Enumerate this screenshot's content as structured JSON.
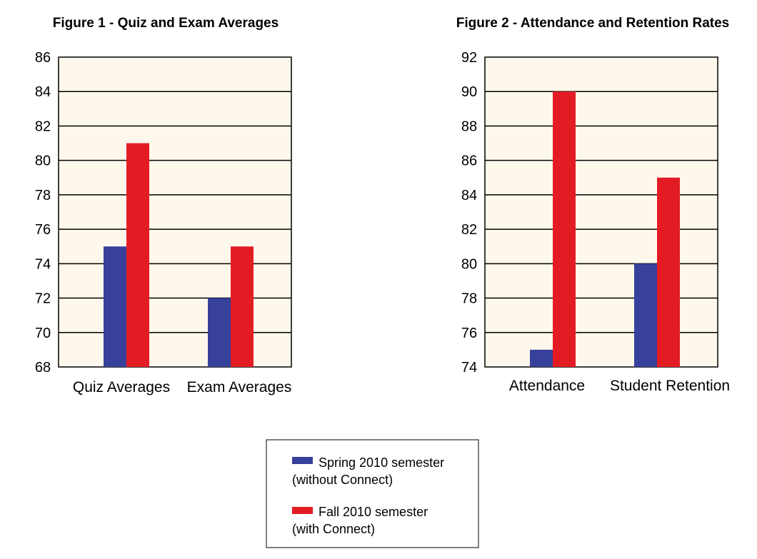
{
  "colors": {
    "spring": "#37409a",
    "fall": "#e31c24",
    "plot_bg": "#fef8ec"
  },
  "chart_data": [
    {
      "type": "bar",
      "title": "Figure 1 - Quiz and Exam Averages",
      "categories": [
        "Quiz Averages",
        "Exam Averages"
      ],
      "series": [
        {
          "name": "Spring 2010 semester (without Connect)",
          "values": [
            75,
            72
          ]
        },
        {
          "name": "Fall 2010 semester (with Connect)",
          "values": [
            81,
            75
          ]
        }
      ],
      "yticks": [
        68,
        70,
        72,
        74,
        76,
        78,
        80,
        82,
        84,
        86
      ],
      "ylim": [
        68,
        86
      ],
      "grid": true
    },
    {
      "type": "bar",
      "title": "Figure 2 - Attendance and Retention Rates",
      "categories": [
        "Attendance",
        "Student Retention"
      ],
      "series": [
        {
          "name": "Spring 2010 semester (without Connect)",
          "values": [
            75,
            80
          ]
        },
        {
          "name": "Fall 2010 semester (with Connect)",
          "values": [
            90,
            85
          ]
        }
      ],
      "yticks": [
        74,
        76,
        78,
        80,
        82,
        84,
        86,
        88,
        90,
        92
      ],
      "ylim": [
        74,
        92
      ],
      "grid": true
    }
  ],
  "legend": {
    "items": [
      {
        "line1": "Spring 2010 semester",
        "line2": "(without Connect)"
      },
      {
        "line1": "Fall 2010 semester",
        "line2": "(with Connect)"
      }
    ]
  }
}
